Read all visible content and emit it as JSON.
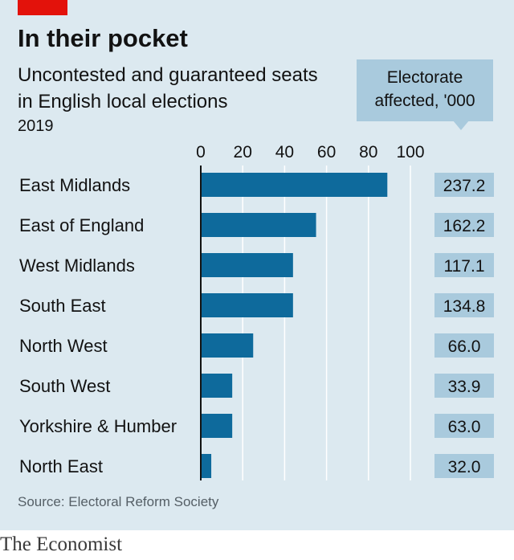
{
  "title": "In their pocket",
  "subtitle": "Uncontested and guaranteed seats in English local elections",
  "year": "2019",
  "callout": "Electorate\naffected, '000",
  "source": "Source: Electoral Reform Society",
  "brand": "The Economist",
  "colors": {
    "bar": "#0e6a9c",
    "panel": "#dce9f0",
    "valueBox": "#a9cadd",
    "accent": "#e3120b"
  },
  "chart_data": {
    "type": "bar",
    "orientation": "horizontal",
    "categories": [
      "East Midlands",
      "East of England",
      "West Midlands",
      "South East",
      "North West",
      "South West",
      "Yorkshire & Humber",
      "North East"
    ],
    "values": [
      89,
      55,
      44,
      44,
      25,
      15,
      15,
      5
    ],
    "xlim": [
      0,
      100
    ],
    "xticks": [
      0,
      20,
      40,
      60,
      80,
      100
    ],
    "grid": true,
    "side_values": {
      "label": "Electorate affected, '000",
      "values": [
        "237.2",
        "162.2",
        "117.1",
        "134.8",
        "66.0",
        "33.9",
        "63.0",
        "32.0"
      ]
    }
  }
}
